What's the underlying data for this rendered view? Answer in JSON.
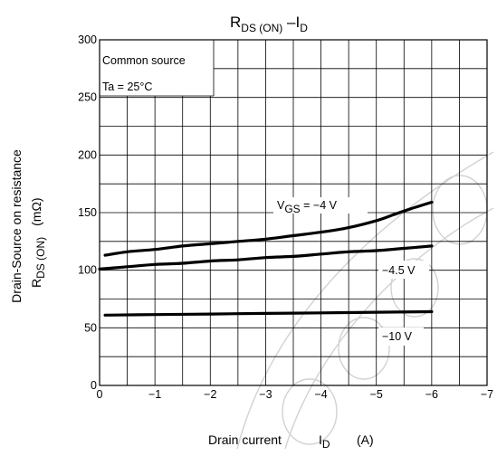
{
  "chart_data": {
    "type": "line",
    "title": {
      "main": "R",
      "sub1": "DS (ON)",
      "dash": " –I",
      "sub2": "D"
    },
    "xlabel": {
      "text": "Drain current",
      "symbol": "I",
      "symbol_sub": "D",
      "unit": "(A)"
    },
    "ylabel": {
      "line1": "Drain-Source on resistance",
      "line2_main": "R",
      "line2_sub": "DS (ON)",
      "line2_unit": "(mΩ)"
    },
    "xlim": [
      0,
      -7
    ],
    "ylim": [
      0,
      300
    ],
    "x_ticks": [
      {
        "value": 0,
        "label": "0"
      },
      {
        "value": -1,
        "label": "−1"
      },
      {
        "value": -2,
        "label": "−2"
      },
      {
        "value": -3,
        "label": "−3"
      },
      {
        "value": -4,
        "label": "−4"
      },
      {
        "value": -5,
        "label": "−5"
      },
      {
        "value": -6,
        "label": "−6"
      },
      {
        "value": -7,
        "label": "−7"
      }
    ],
    "y_ticks": [
      {
        "value": 0,
        "label": "0"
      },
      {
        "value": 50,
        "label": "50"
      },
      {
        "value": 100,
        "label": "100"
      },
      {
        "value": 150,
        "label": "150"
      },
      {
        "value": 200,
        "label": "200"
      },
      {
        "value": 250,
        "label": "250"
      },
      {
        "value": 300,
        "label": "300"
      }
    ],
    "grid": true,
    "notes": [
      "Common source",
      "Ta = 25°C"
    ],
    "series": [
      {
        "x": [
          -0.1,
          -0.5,
          -1,
          -1.5,
          -2,
          -2.5,
          -3,
          -3.5,
          -4,
          -4.5,
          -5,
          -5.3,
          -5.6,
          -6
        ],
        "y": [
          113,
          116,
          118,
          121,
          123,
          125,
          127,
          130,
          133,
          137,
          143,
          148,
          153,
          159
        ]
      },
      {
        "x": [
          0,
          -0.5,
          -1,
          -1.5,
          -2,
          -2.5,
          -3,
          -3.5,
          -4,
          -4.5,
          -5,
          -5.5,
          -6
        ],
        "y": [
          101,
          103,
          105,
          106,
          108,
          109,
          111,
          112,
          114,
          116,
          117,
          119,
          121
        ]
      },
      {
        "x": [
          -0.1,
          -1,
          -2,
          -3,
          -4,
          -5,
          -6
        ],
        "y": [
          61,
          61.5,
          62,
          62.5,
          63,
          63.5,
          64
        ]
      }
    ],
    "curve_labels": [
      {
        "main": "V",
        "sub": "GS",
        "rest": " = −4 V"
      },
      {
        "main": "−4.5 V",
        "sub": "",
        "rest": ""
      },
      {
        "main": "−10 V",
        "sub": "",
        "rest": ""
      }
    ],
    "watermark": {
      "shape": "arc-letters",
      "color": "#d2d2d2"
    }
  }
}
